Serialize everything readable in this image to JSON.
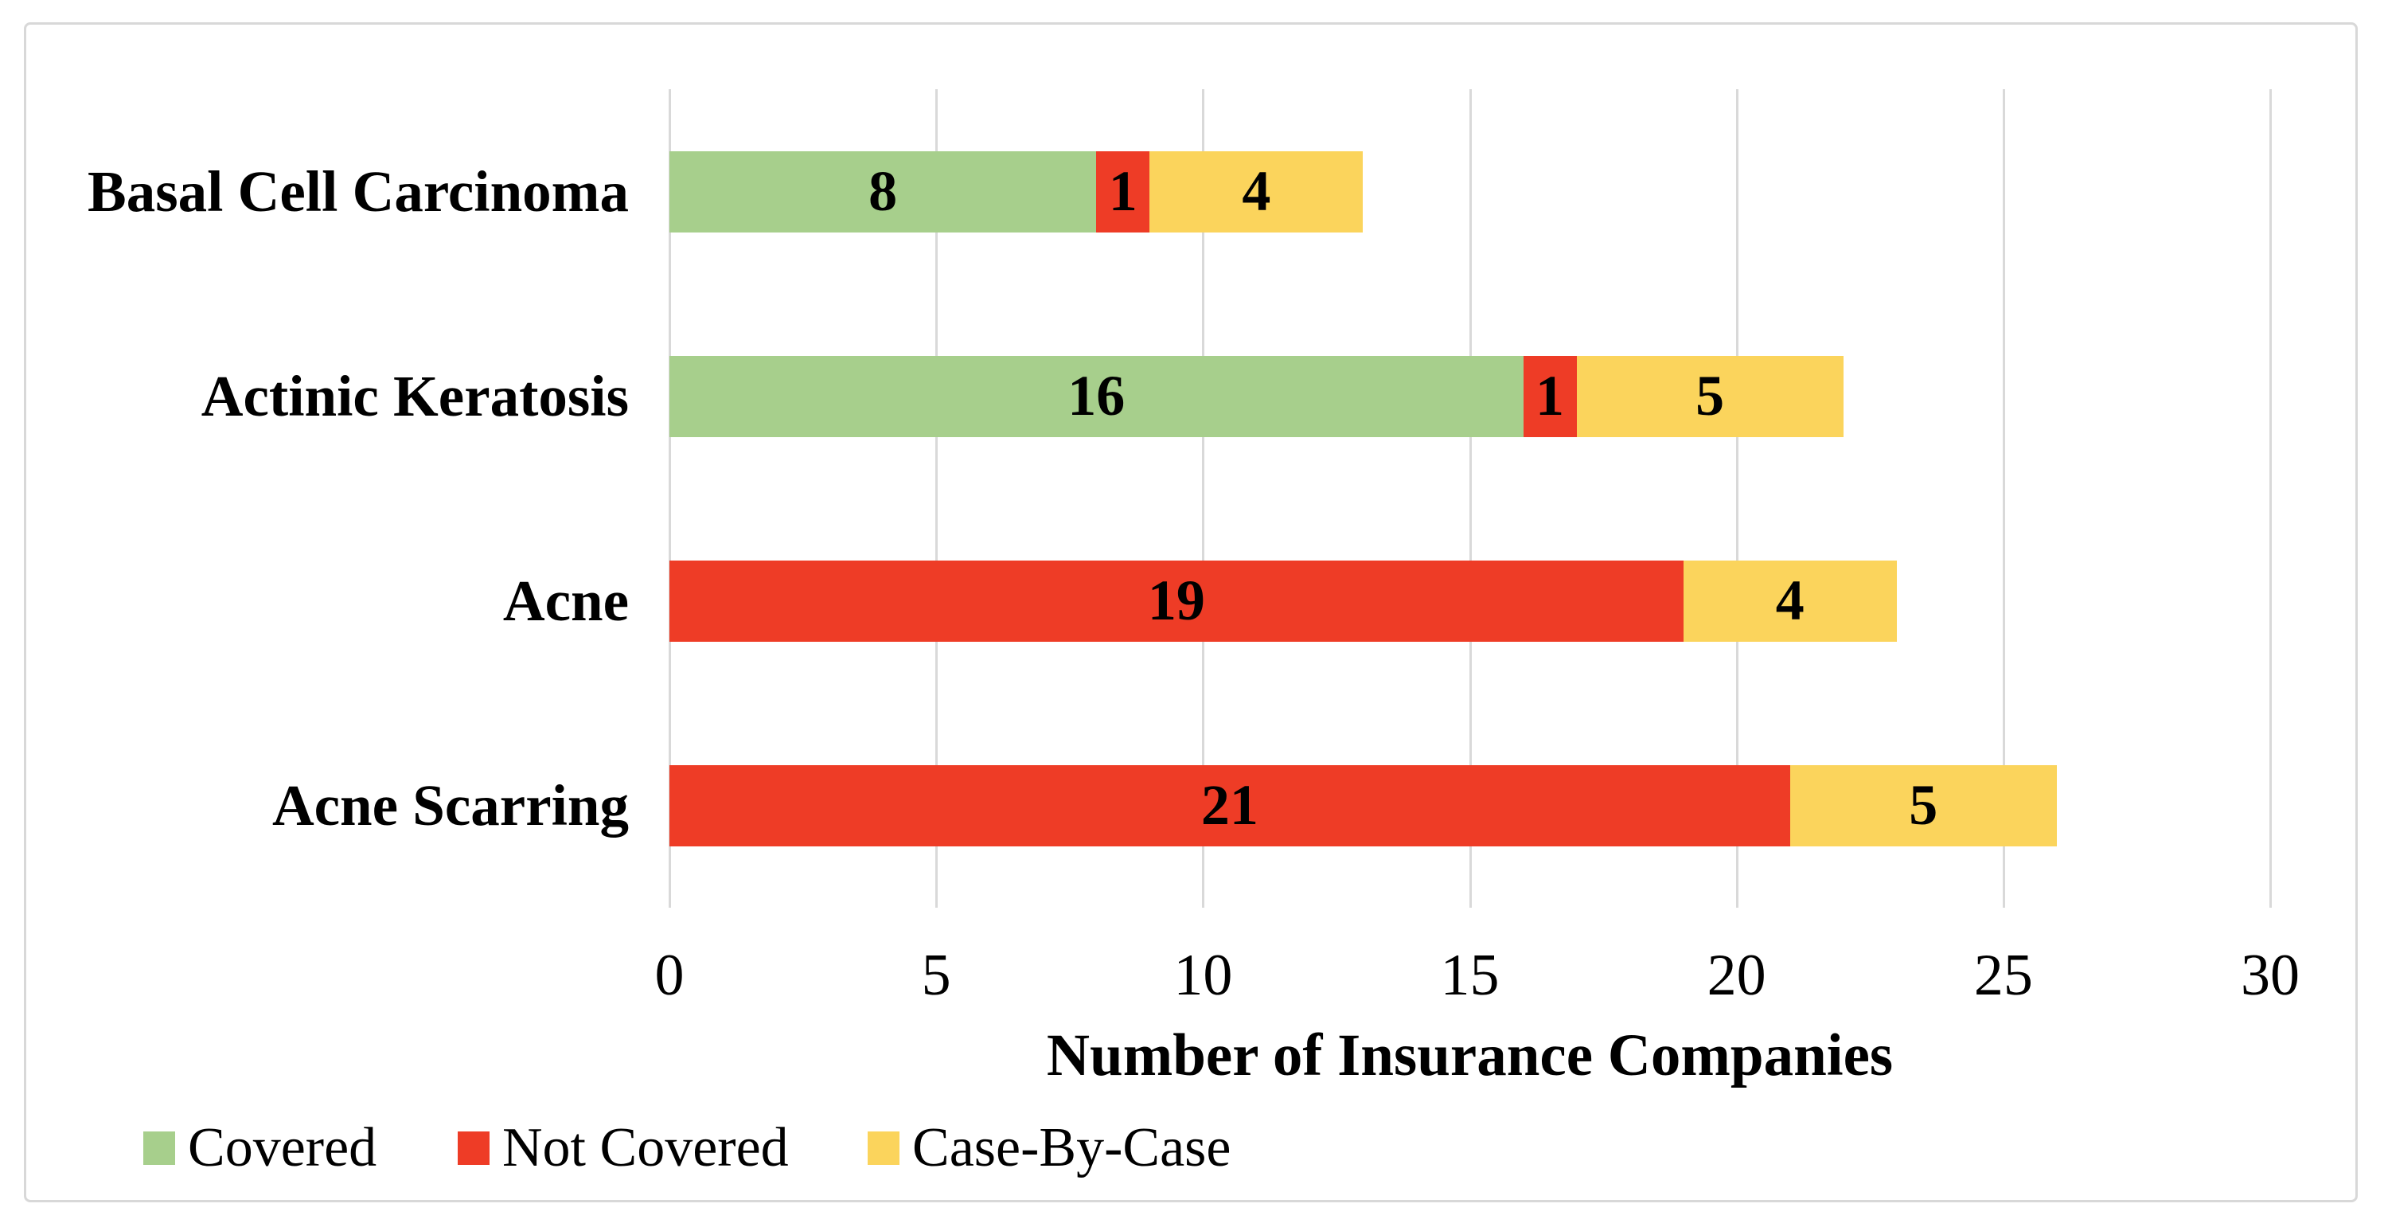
{
  "figure": {
    "background": "#FFFFFF",
    "border_color": "#D8D8D8"
  },
  "chart_data": {
    "type": "bar",
    "orientation": "horizontal",
    "stacked": true,
    "title": "",
    "xlabel": "Number of Insurance Companies",
    "ylabel": "",
    "xlim": [
      0,
      30
    ],
    "x_ticks": [
      0,
      5,
      10,
      15,
      20,
      25,
      30
    ],
    "grid": true,
    "gridline_color": "#D9D9D9",
    "data_labels": true,
    "data_label_color": "#000000",
    "legend_position": "bottom-left",
    "categories": [
      "Basal Cell Carcinoma",
      "Actinic Keratosis",
      "Acne",
      "Acne Scarring"
    ],
    "series": [
      {
        "name": "Covered",
        "color": "#A7CF8C",
        "values": [
          8,
          16,
          0,
          0
        ]
      },
      {
        "name": "Not Covered",
        "color": "#EE3C26",
        "values": [
          1,
          1,
          19,
          21
        ]
      },
      {
        "name": "Case-By-Case",
        "color": "#FBD45C",
        "values": [
          4,
          5,
          4,
          5
        ]
      }
    ],
    "totals": [
      13,
      22,
      23,
      26
    ]
  },
  "legend": {
    "items": [
      {
        "label": "Covered",
        "color": "#A7CF8C"
      },
      {
        "label": "Not Covered",
        "color": "#EE3C26"
      },
      {
        "label": "Case-By-Case",
        "color": "#FBD45C"
      }
    ]
  }
}
